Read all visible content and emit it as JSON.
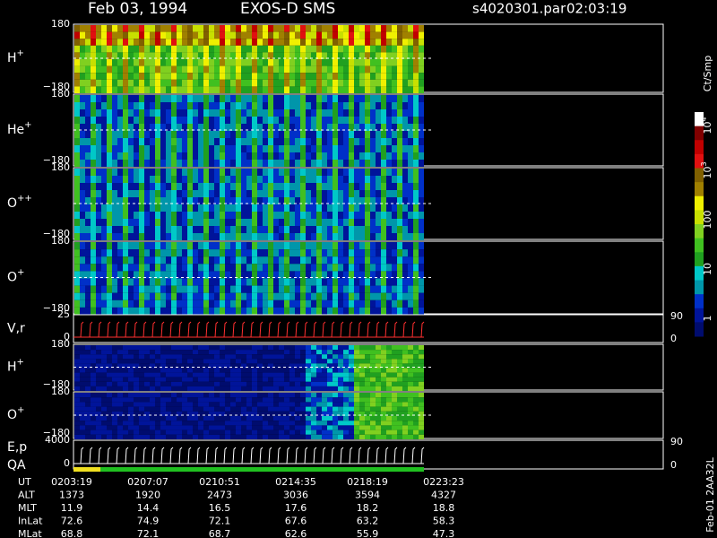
{
  "header": {
    "date": "Feb 03, 1994",
    "instrument": "EXOS-D SMS",
    "file": "s4020301.par",
    "time": "02:03:19"
  },
  "panels": [
    {
      "label": "H",
      "sup": "+",
      "ticks": [
        "180",
        "−180"
      ]
    },
    {
      "label": "He",
      "sup": "+",
      "ticks": [
        "180",
        "−180"
      ]
    },
    {
      "label": "O",
      "sup": "++",
      "ticks": [
        "180",
        "−180"
      ]
    },
    {
      "label": "O",
      "sup": "+",
      "ticks": [
        "180",
        "−180"
      ]
    },
    {
      "label": "V,r",
      "ticks": [
        "25",
        "0"
      ],
      "right_ticks": [
        "90",
        "0"
      ]
    },
    {
      "label": "H",
      "sup": "+",
      "ticks": [
        "180",
        "−180"
      ]
    },
    {
      "label": "O",
      "sup": "+",
      "ticks": [
        "180",
        "−180"
      ]
    },
    {
      "label": "E,p",
      "label2": "QA",
      "ticks": [
        "4000",
        "0"
      ],
      "right_ticks": [
        "90",
        "0"
      ]
    }
  ],
  "colorbar": {
    "unit": "Ct/Smp",
    "ticks": [
      {
        "base": "10",
        "exp": "4"
      },
      {
        "base": "10",
        "exp": "3"
      },
      "100",
      "10",
      "1"
    ]
  },
  "table": {
    "rows": [
      [
        "UT",
        "0203:19",
        "0207:07",
        "0210:51",
        "0214:35",
        "0218:19",
        "0223:23"
      ],
      [
        "ALT",
        "1373",
        "1920",
        "2473",
        "3036",
        "3594",
        "4327"
      ],
      [
        "MLT",
        "11.9",
        "14.4",
        "16.5",
        "17.6",
        "18.2",
        "18.8"
      ],
      [
        "InLat",
        "72.6",
        "74.9",
        "72.1",
        "67.6",
        "63.2",
        "58.3"
      ],
      [
        "MLat",
        "68.8",
        "72.1",
        "68.7",
        "62.6",
        "55.9",
        "47.3"
      ]
    ]
  },
  "side_label": "Feb-01 2AA32L"
}
